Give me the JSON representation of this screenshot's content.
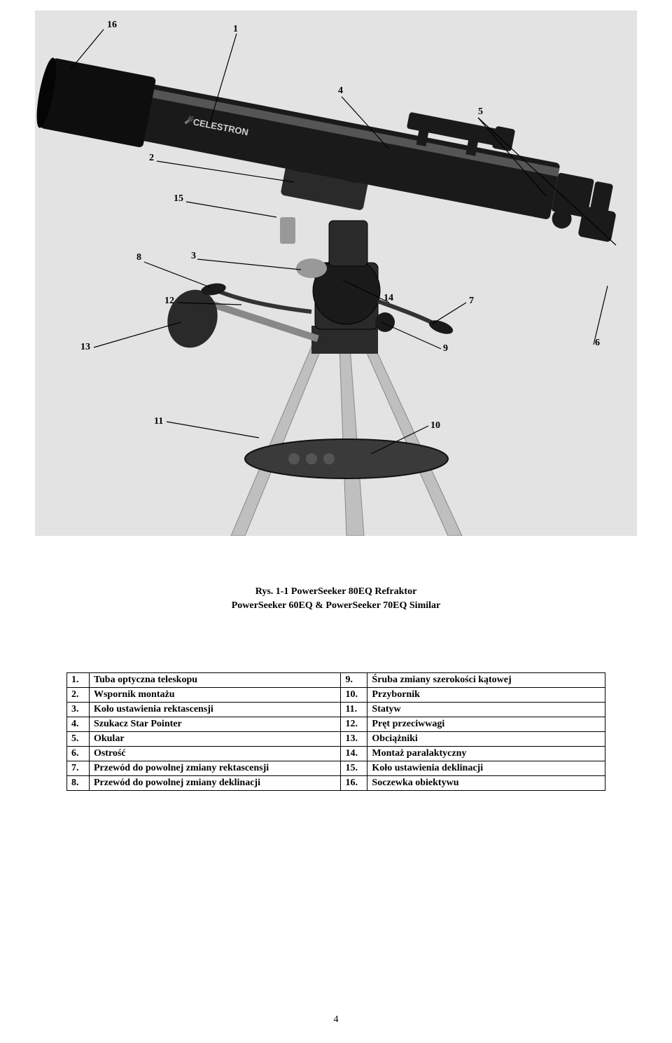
{
  "callouts": {
    "c1": "1",
    "c2": "2",
    "c3": "3",
    "c4": "4",
    "c5": "5",
    "c6": "6",
    "c7": "7",
    "c8": "8",
    "c9": "9",
    "c10": "10",
    "c11": "11",
    "c12": "12",
    "c13": "13",
    "c14": "14",
    "c15": "15",
    "c16": "16"
  },
  "caption": {
    "line1": "Rys. 1-1  PowerSeeker 80EQ Refraktor",
    "line2": "PowerSeeker 60EQ & PowerSeeker 70EQ Similar"
  },
  "table": {
    "rows": [
      {
        "ln": "1.",
        "ll": "Tuba optyczna teleskopu",
        "rn": "9.",
        "rl": "Śruba zmiany szerokości kątowej"
      },
      {
        "ln": "2.",
        "ll": "Wspornik montażu",
        "rn": "10.",
        "rl": "Przybornik"
      },
      {
        "ln": "3.",
        "ll": "Koło ustawienia rektascensji",
        "rn": "11.",
        "rl": "Statyw"
      },
      {
        "ln": "4.",
        "ll": "Szukacz Star Pointer",
        "rn": "12.",
        "rl": "Pręt przeciwwagi"
      },
      {
        "ln": "5.",
        "ll": "Okular",
        "rn": "13.",
        "rl": "Obciążniki"
      },
      {
        "ln": "6.",
        "ll": "Ostrość",
        "rn": "14.",
        "rl": "Montaż paralaktyczny"
      },
      {
        "ln": "7.",
        "ll": "Przewód do powolnej zmiany rektascensji",
        "rn": "15.",
        "rl": "Koło ustawienia deklinacji"
      },
      {
        "ln": "8.",
        "ll": "Przewód do powolnej zmiany deklinacji",
        "rn": "16.",
        "rl": "Soczewka obiektywu"
      }
    ]
  },
  "page_number": "4",
  "colors": {
    "photo_bg": "#e3e3e3",
    "telescope_body": "#1a1a1a",
    "telescope_highlight": "#555555",
    "mount": "#2a2a2a",
    "tripod": "#bfbfbf",
    "tray": "#3a3a3a"
  }
}
